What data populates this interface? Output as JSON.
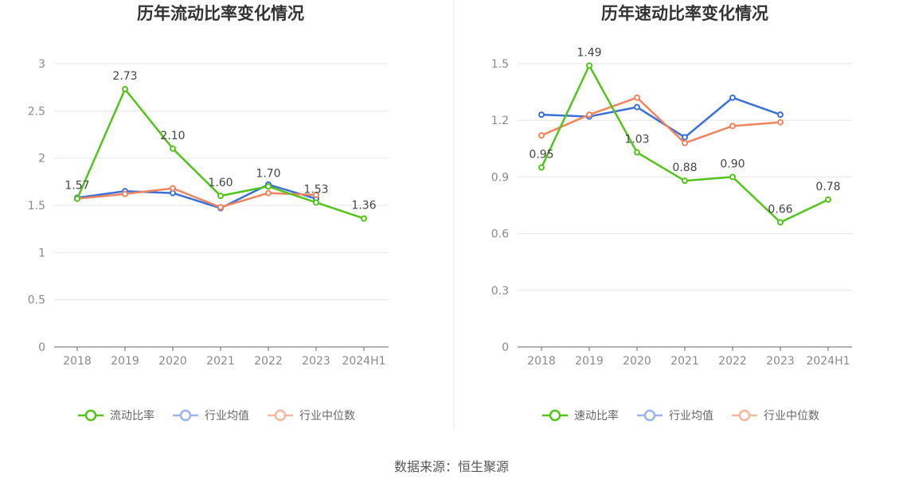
{
  "source_text": "数据来源：恒生聚源",
  "chart_data": [
    {
      "type": "line",
      "title": "历年流动比率变化情况",
      "categories": [
        "2018",
        "2019",
        "2020",
        "2021",
        "2022",
        "2023",
        "2024H1"
      ],
      "ylim": [
        0,
        3
      ],
      "yticks": [
        0,
        0.5,
        1,
        1.5,
        2,
        2.5,
        3
      ],
      "ytick_labels": [
        "0",
        "0.5",
        "1",
        "1.5",
        "2",
        "2.5",
        "3"
      ],
      "grid": true,
      "legend_position": "bottom",
      "series": [
        {
          "name": "流动比率",
          "color": "#52c41a",
          "values": [
            1.57,
            2.73,
            2.1,
            1.6,
            1.7,
            1.53,
            1.36
          ],
          "labels": [
            "1.57",
            "2.73",
            "2.10",
            "1.60",
            "1.70",
            "1.53",
            "1.36"
          ]
        },
        {
          "name": "行业均值",
          "color": "#3a6fd8",
          "values": [
            1.58,
            1.65,
            1.63,
            1.47,
            1.72,
            1.57,
            null
          ]
        },
        {
          "name": "行业中位数",
          "color": "#f0845c",
          "values": [
            1.57,
            1.62,
            1.68,
            1.48,
            1.63,
            1.61,
            null
          ]
        }
      ]
    },
    {
      "type": "line",
      "title": "历年速动比率变化情况",
      "categories": [
        "2018",
        "2019",
        "2020",
        "2021",
        "2022",
        "2023",
        "2024H1"
      ],
      "ylim": [
        0,
        1.5
      ],
      "yticks": [
        0,
        0.3,
        0.6,
        0.9,
        1.2,
        1.5
      ],
      "ytick_labels": [
        "0",
        "0.3",
        "0.6",
        "0.9",
        "1.2",
        "1.5"
      ],
      "grid": true,
      "legend_position": "bottom",
      "series": [
        {
          "name": "速动比率",
          "color": "#52c41a",
          "values": [
            0.95,
            1.49,
            1.03,
            0.88,
            0.9,
            0.66,
            0.78
          ],
          "labels": [
            "0.95",
            "1.49",
            "1.03",
            "0.88",
            "0.90",
            "0.66",
            "0.78"
          ]
        },
        {
          "name": "行业均值",
          "color": "#3a6fd8",
          "values": [
            1.23,
            1.22,
            1.27,
            1.11,
            1.32,
            1.23,
            null
          ]
        },
        {
          "name": "行业中位数",
          "color": "#f0845c",
          "values": [
            1.12,
            1.23,
            1.32,
            1.08,
            1.17,
            1.19,
            null
          ]
        }
      ]
    }
  ]
}
